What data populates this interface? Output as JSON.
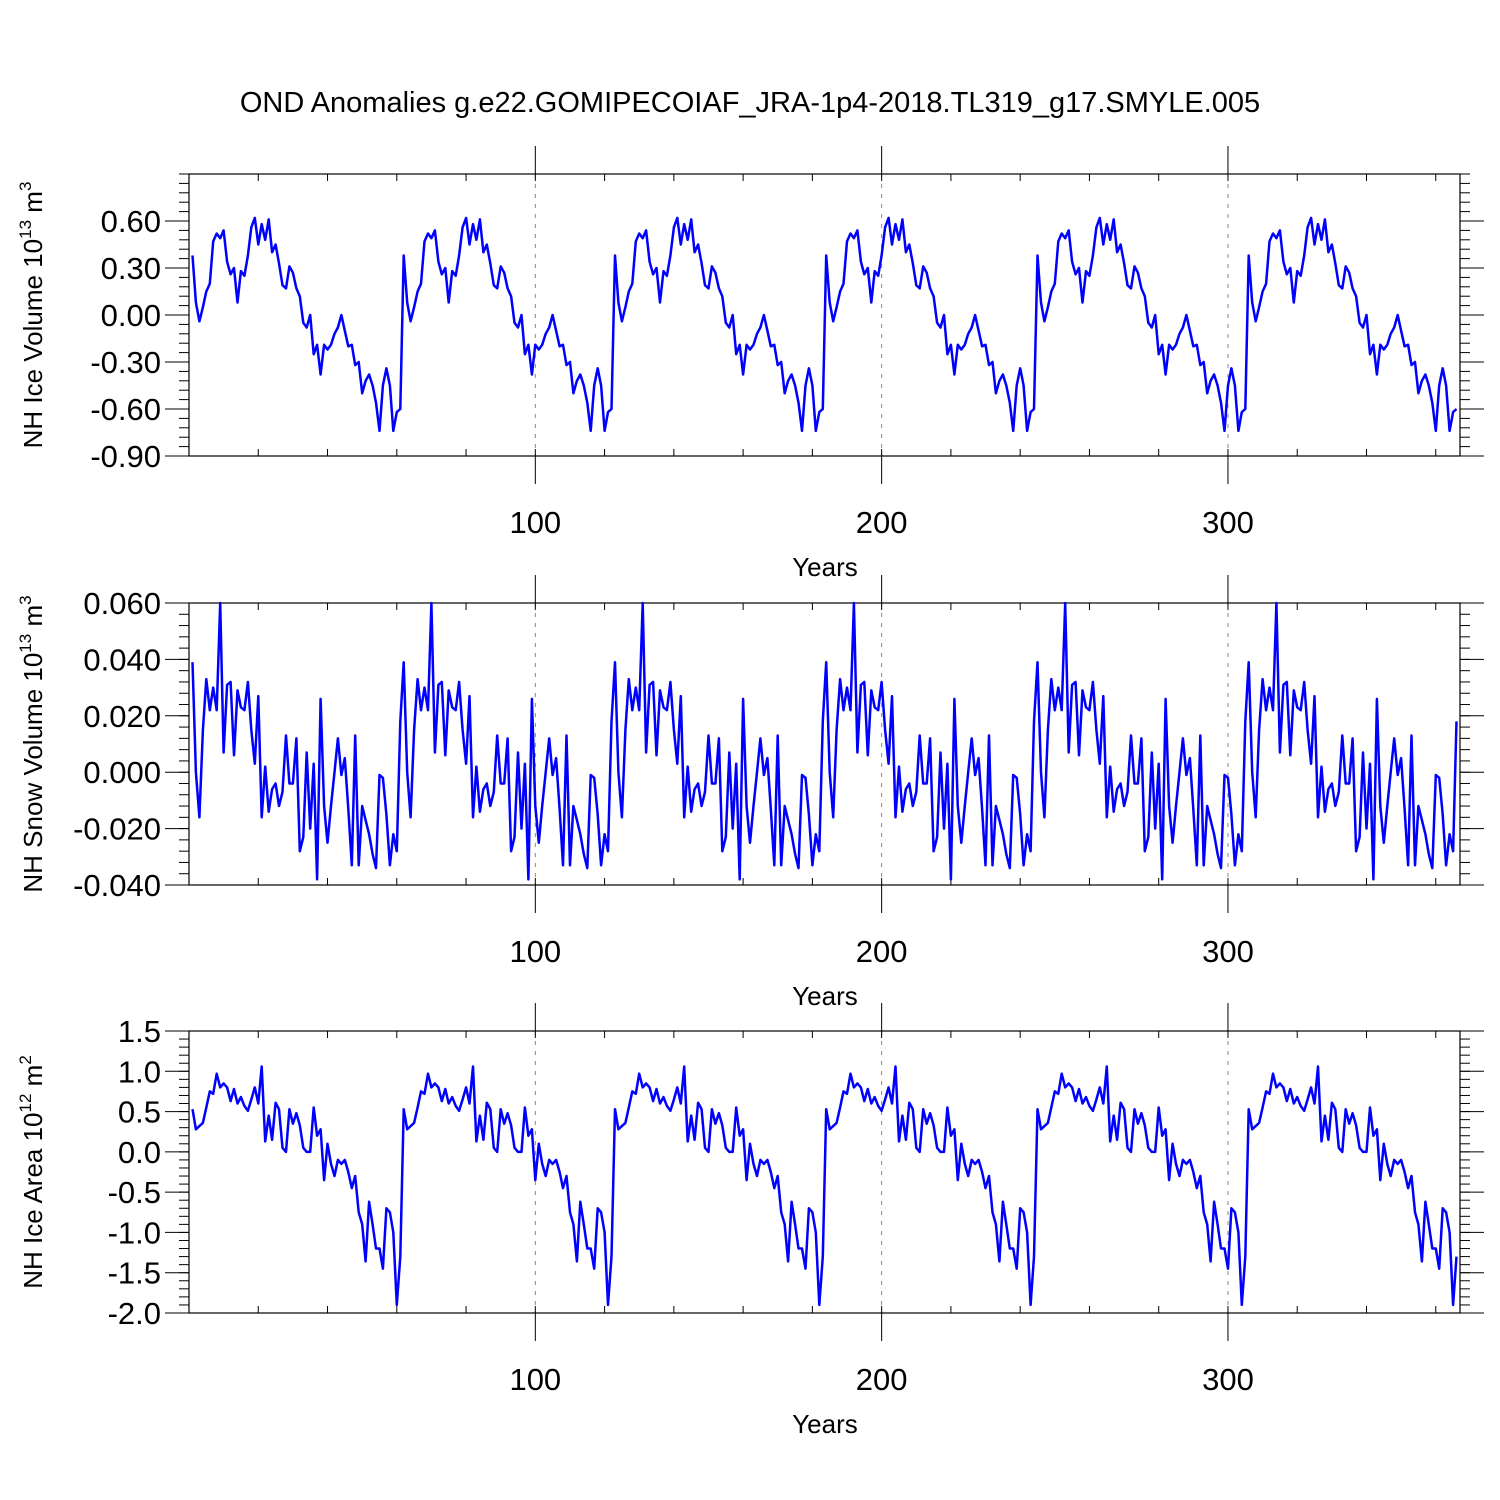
{
  "title": "OND Anomalies g.e22.GOMIPECOIAF_JRA-1p4-2018.TL319_g17.SMYLE.005",
  "chart_data": [
    {
      "type": "line",
      "ylabel": "NH Ice Volume 10",
      "ylabel_exp": "13",
      "ylabel_unit": " m",
      "ylabel_unit_exp": "3",
      "xlabel": "Years",
      "xlim": [
        0,
        367
      ],
      "ylim": [
        -0.9,
        0.9
      ],
      "yticks": [
        -0.9,
        -0.6,
        -0.3,
        0.0,
        0.3,
        0.6
      ],
      "ytick_labels": [
        "-0.90",
        "-0.60",
        "-0.30",
        "0.00",
        "0.30",
        "0.60"
      ],
      "xticks": [
        100,
        200,
        300
      ],
      "xtick_labels": [
        "100",
        "200",
        "300"
      ],
      "grid_x": [
        100,
        200,
        300
      ],
      "series": [
        {
          "name": "NH Ice Volume",
          "color": "#0000ff",
          "pattern_period": 61,
          "cycles": 6,
          "pattern": [
            0.38,
            0.08,
            -0.04,
            0.05,
            0.15,
            0.2,
            0.47,
            0.52,
            0.49,
            0.54,
            0.34,
            0.26,
            0.3,
            0.08,
            0.28,
            0.25,
            0.38,
            0.56,
            0.62,
            0.45,
            0.58,
            0.48,
            0.61,
            0.4,
            0.45,
            0.33,
            0.19,
            0.17,
            0.31,
            0.27,
            0.17,
            0.12,
            -0.05,
            -0.08,
            0.0,
            -0.25,
            -0.19,
            -0.38,
            -0.19,
            -0.22,
            -0.19,
            -0.12,
            -0.08,
            0.0,
            -0.1,
            -0.2,
            -0.19,
            -0.32,
            -0.3,
            -0.5,
            -0.42,
            -0.38,
            -0.45,
            -0.56,
            -0.74,
            -0.45,
            -0.34,
            -0.45,
            -0.74,
            -0.62,
            -0.6
          ]
        }
      ]
    },
    {
      "type": "line",
      "ylabel": "NH Snow Volume 10",
      "ylabel_exp": "13",
      "ylabel_unit": " m",
      "ylabel_unit_exp": "3",
      "xlabel": "Years",
      "xlim": [
        0,
        367
      ],
      "ylim": [
        -0.04,
        0.06
      ],
      "yticks": [
        -0.04,
        -0.02,
        0.0,
        0.02,
        0.04,
        0.06
      ],
      "ytick_labels": [
        "-0.040",
        "-0.020",
        "0.000",
        "0.020",
        "0.040",
        "0.060"
      ],
      "xticks": [
        100,
        200,
        300
      ],
      "xtick_labels": [
        "100",
        "200",
        "300"
      ],
      "grid_x": [
        100,
        200,
        300
      ],
      "series": [
        {
          "name": "NH Snow Volume",
          "color": "#0000ff",
          "pattern_period": 61,
          "cycles": 6,
          "pattern": [
            0.039,
            0.0,
            -0.016,
            0.015,
            0.033,
            0.022,
            0.03,
            0.022,
            0.06,
            0.007,
            0.031,
            0.032,
            0.006,
            0.029,
            0.023,
            0.022,
            0.032,
            0.015,
            0.003,
            0.027,
            -0.016,
            0.002,
            -0.014,
            -0.006,
            -0.004,
            -0.012,
            -0.007,
            0.013,
            -0.004,
            -0.004,
            0.012,
            -0.028,
            -0.023,
            0.007,
            -0.02,
            0.003,
            -0.038,
            0.026,
            -0.012,
            -0.025,
            -0.012,
            0.0,
            0.012,
            -0.001,
            0.005,
            -0.013,
            -0.033,
            0.013,
            -0.033,
            -0.012,
            -0.017,
            -0.022,
            -0.029,
            -0.034,
            -0.001,
            -0.002,
            -0.015,
            -0.033,
            -0.022,
            -0.028,
            0.018
          ]
        }
      ]
    },
    {
      "type": "line",
      "ylabel": "NH Ice Area 10",
      "ylabel_exp": "12",
      "ylabel_unit": " m",
      "ylabel_unit_exp": "2",
      "xlabel": "Years",
      "xlim": [
        0,
        367
      ],
      "ylim": [
        -2.0,
        1.5
      ],
      "yticks": [
        -2.0,
        -1.5,
        -1.0,
        -0.5,
        0.0,
        0.5,
        1.0,
        1.5
      ],
      "ytick_labels": [
        "-2.0",
        "-1.5",
        "-1.0",
        "-0.5",
        "0.0",
        "0.5",
        "1.0",
        "1.5"
      ],
      "xticks": [
        100,
        200,
        300
      ],
      "xtick_labels": [
        "100",
        "200",
        "300"
      ],
      "grid_x": [
        100,
        200,
        300
      ],
      "series": [
        {
          "name": "NH Ice Area",
          "color": "#0000ff",
          "pattern_period": 61,
          "cycles": 6,
          "pattern": [
            0.53,
            0.28,
            0.32,
            0.36,
            0.55,
            0.75,
            0.72,
            0.97,
            0.8,
            0.85,
            0.8,
            0.63,
            0.78,
            0.6,
            0.68,
            0.57,
            0.51,
            0.65,
            0.8,
            0.6,
            1.06,
            0.13,
            0.45,
            0.15,
            0.61,
            0.53,
            0.05,
            0.0,
            0.53,
            0.35,
            0.48,
            0.33,
            0.05,
            0.0,
            0.0,
            0.55,
            0.2,
            0.28,
            -0.35,
            0.1,
            -0.15,
            -0.3,
            -0.1,
            -0.15,
            -0.1,
            -0.25,
            -0.45,
            -0.3,
            -0.75,
            -0.9,
            -1.36,
            -0.62,
            -0.9,
            -1.2,
            -1.2,
            -1.45,
            -0.7,
            -0.75,
            -1.0,
            -1.9,
            -1.3
          ]
        }
      ]
    }
  ]
}
